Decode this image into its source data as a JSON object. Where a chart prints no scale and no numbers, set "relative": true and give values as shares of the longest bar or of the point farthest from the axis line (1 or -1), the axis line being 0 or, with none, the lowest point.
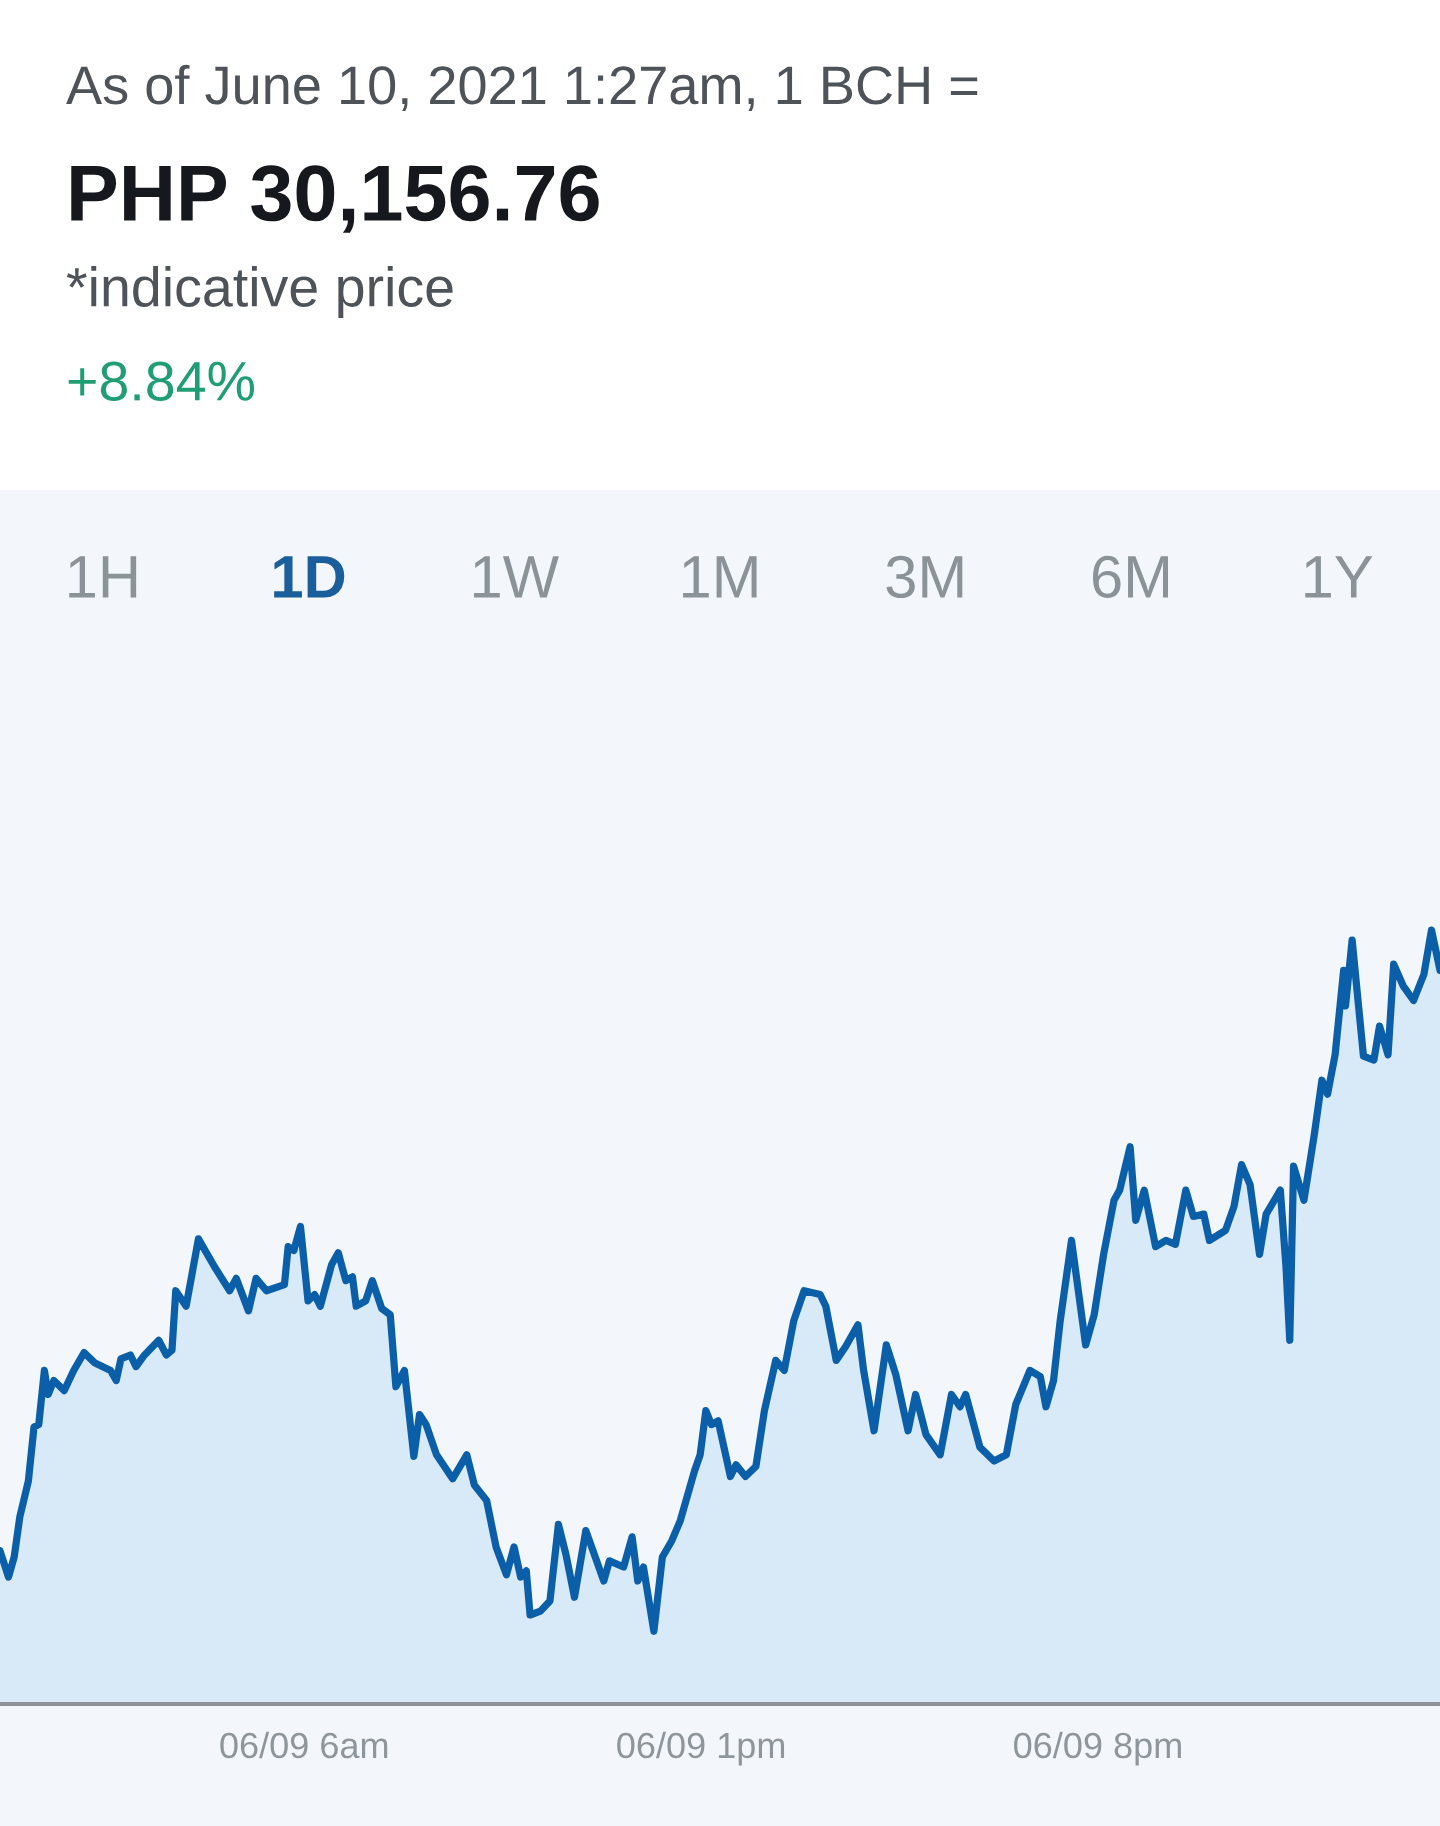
{
  "chart_data": {
    "type": "area",
    "title": "As of June 10, 2021 1:27am, 1 BCH =",
    "subtitle": "PHP 30,156.76",
    "annotations": [
      "*indicative price",
      "+8.84%",
      "1H",
      "1D",
      "1W",
      "1M",
      "3M",
      "6M",
      "1Y"
    ],
    "relative": true,
    "xlim": [
      "2021-06-09T00:38",
      "2021-06-10T02:02"
    ],
    "xticks": [
      {
        "value": "2021-06-09T06:00",
        "label": "06/09 6am"
      },
      {
        "value": "2021-06-09T13:00",
        "label": "06/09 1pm"
      },
      {
        "value": "2021-06-09T20:00",
        "label": "06/09 8pm"
      }
    ],
    "x": [
      "2021-06-09T00:38",
      "2021-06-09T00:47",
      "2021-06-09T00:53",
      "2021-06-09T00:59",
      "2021-06-09T01:08",
      "2021-06-09T01:14",
      "2021-06-09T01:19",
      "2021-06-09T01:25",
      "2021-06-09T01:29",
      "2021-06-09T01:35",
      "2021-06-09T01:46",
      "2021-06-09T01:56",
      "2021-06-09T02:07",
      "2021-06-09T02:18",
      "2021-06-09T02:35",
      "2021-06-09T02:41",
      "2021-06-09T02:46",
      "2021-06-09T02:56",
      "2021-06-09T03:02",
      "2021-06-09T03:11",
      "2021-06-09T03:26",
      "2021-06-09T03:34",
      "2021-06-09T03:40",
      "2021-06-09T03:44",
      "2021-06-09T03:55",
      "2021-06-09T04:08",
      "2021-06-09T04:25",
      "2021-06-09T04:41",
      "2021-06-09T04:48",
      "2021-06-09T05:01",
      "2021-06-09T05:09",
      "2021-06-09T05:20",
      "2021-06-09T05:39",
      "2021-06-09T05:43",
      "2021-06-09T05:49",
      "2021-06-09T05:56",
      "2021-06-09T06:04",
      "2021-06-09T06:11",
      "2021-06-09T06:17",
      "2021-06-09T06:29",
      "2021-06-09T06:36",
      "2021-06-09T06:44",
      "2021-06-09T06:51",
      "2021-06-09T06:55",
      "2021-06-09T07:05",
      "2021-06-09T07:12",
      "2021-06-09T07:22",
      "2021-06-09T07:31",
      "2021-06-09T07:37",
      "2021-06-09T07:46",
      "2021-06-09T07:56",
      "2021-06-09T08:02",
      "2021-06-09T08:09",
      "2021-06-09T08:20",
      "2021-06-09T08:37",
      "2021-06-09T08:52",
      "2021-06-09T09:00",
      "2021-06-09T09:13",
      "2021-06-09T09:23",
      "2021-06-09T09:34",
      "2021-06-09T09:42",
      "2021-06-09T09:49",
      "2021-06-09T09:55",
      "2021-06-09T09:59",
      "2021-06-09T10:10",
      "2021-06-09T10:20",
      "2021-06-09T10:29",
      "2021-06-09T10:37",
      "2021-06-09T10:46",
      "2021-06-09T10:58",
      "2021-06-09T11:17",
      "2021-06-09T11:23",
      "2021-06-09T11:38",
      "2021-06-09T11:47",
      "2021-06-09T11:53",
      "2021-06-09T11:59",
      "2021-06-09T12:10",
      "2021-06-09T12:19",
      "2021-06-09T12:29",
      "2021-06-09T12:38",
      "2021-06-09T12:53",
      "2021-06-09T12:59",
      "2021-06-09T13:05",
      "2021-06-09T13:11",
      "2021-06-09T13:18",
      "2021-06-09T13:31",
      "2021-06-09T13:37",
      "2021-06-09T13:47",
      "2021-06-09T13:58",
      "2021-06-09T14:07",
      "2021-06-09T14:19",
      "2021-06-09T14:28",
      "2021-06-09T14:38",
      "2021-06-09T14:49",
      "2021-06-09T15:06",
      "2021-06-09T15:12",
      "2021-06-09T15:23",
      "2021-06-09T15:33",
      "2021-06-09T15:46",
      "2021-06-09T15:52",
      "2021-06-09T16:03",
      "2021-06-09T16:16",
      "2021-06-09T16:26",
      "2021-06-09T16:39",
      "2021-06-09T16:47",
      "2021-06-09T16:58",
      "2021-06-09T17:13",
      "2021-06-09T17:25",
      "2021-06-09T17:34",
      "2021-06-09T17:40",
      "2021-06-09T17:55",
      "2021-06-09T18:10",
      "2021-06-09T18:23",
      "2021-06-09T18:33",
      "2021-06-09T18:48",
      "2021-06-09T18:59",
      "2021-06-09T19:05",
      "2021-06-09T19:13",
      "2021-06-09T19:20",
      "2021-06-09T19:32",
      "2021-06-09T19:47",
      "2021-06-09T19:56",
      "2021-06-09T20:06",
      "2021-06-09T20:17",
      "2021-06-09T20:23",
      "2021-06-09T20:34",
      "2021-06-09T20:40",
      "2021-06-09T20:49",
      "2021-06-09T21:01",
      "2021-06-09T21:12",
      "2021-06-09T21:22",
      "2021-06-09T21:33",
      "2021-06-09T21:41",
      "2021-06-09T21:52",
      "2021-06-09T21:58",
      "2021-06-09T22:15",
      "2021-06-09T22:24",
      "2021-06-09T22:32",
      "2021-06-09T22:41",
      "2021-06-09T22:51",
      "2021-06-09T22:58",
      "2021-06-09T23:13",
      "2021-06-09T23:19",
      "2021-06-09T23:23",
      "2021-06-09T23:27",
      "2021-06-09T23:38",
      "2021-06-09T23:49",
      "2021-06-09T23:57",
      "2021-06-10T00:03",
      "2021-06-10T00:11",
      "2021-06-10T00:20",
      "2021-06-10T00:22",
      "2021-06-10T00:29",
      "2021-06-10T00:41",
      "2021-06-10T00:52",
      "2021-06-10T00:58",
      "2021-06-10T01:07",
      "2021-06-10T01:13",
      "2021-06-10T01:23",
      "2021-06-10T01:34",
      "2021-06-10T01:45",
      "2021-06-10T01:53",
      "2021-06-10T02:02"
    ],
    "series": [
      {
        "color": "#0b5ea8",
        "values": [
          0.198,
          0.164,
          0.19,
          0.242,
          0.288,
          0.358,
          0.361,
          0.431,
          0.4,
          0.418,
          0.405,
          0.431,
          0.454,
          0.441,
          0.431,
          0.418,
          0.446,
          0.451,
          0.436,
          0.451,
          0.47,
          0.451,
          0.457,
          0.534,
          0.514,
          0.601,
          0.565,
          0.534,
          0.55,
          0.508,
          0.55,
          0.534,
          0.542,
          0.591,
          0.586,
          0.617,
          0.521,
          0.529,
          0.514,
          0.568,
          0.583,
          0.547,
          0.552,
          0.514,
          0.521,
          0.547,
          0.511,
          0.503,
          0.41,
          0.431,
          0.32,
          0.374,
          0.361,
          0.322,
          0.291,
          0.322,
          0.283,
          0.263,
          0.203,
          0.167,
          0.203,
          0.164,
          0.172,
          0.115,
          0.12,
          0.133,
          0.232,
          0.193,
          0.138,
          0.224,
          0.159,
          0.185,
          0.177,
          0.216,
          0.159,
          0.177,
          0.094,
          0.19,
          0.211,
          0.237,
          0.301,
          0.322,
          0.379,
          0.361,
          0.366,
          0.294,
          0.309,
          0.294,
          0.307,
          0.379,
          0.444,
          0.431,
          0.495,
          0.534,
          0.529,
          0.514,
          0.444,
          0.462,
          0.49,
          0.431,
          0.353,
          0.464,
          0.426,
          0.353,
          0.4,
          0.348,
          0.322,
          0.4,
          0.384,
          0.4,
          0.332,
          0.314,
          0.322,
          0.387,
          0.431,
          0.423,
          0.384,
          0.418,
          0.495,
          0.599,
          0.464,
          0.503,
          0.581,
          0.651,
          0.664,
          0.72,
          0.625,
          0.664,
          0.591,
          0.599,
          0.594,
          0.664,
          0.63,
          0.633,
          0.599,
          0.612,
          0.643,
          0.697,
          0.671,
          0.581,
          0.633,
          0.664,
          0.565,
          0.47,
          0.695,
          0.651,
          0.736,
          0.806,
          0.788,
          0.839,
          0.948,
          0.902,
          0.987,
          0.837,
          0.832,
          0.876,
          0.839,
          0.956,
          0.928,
          0.909,
          0.943,
          1.0,
          0.948
        ]
      }
    ]
  }
}
